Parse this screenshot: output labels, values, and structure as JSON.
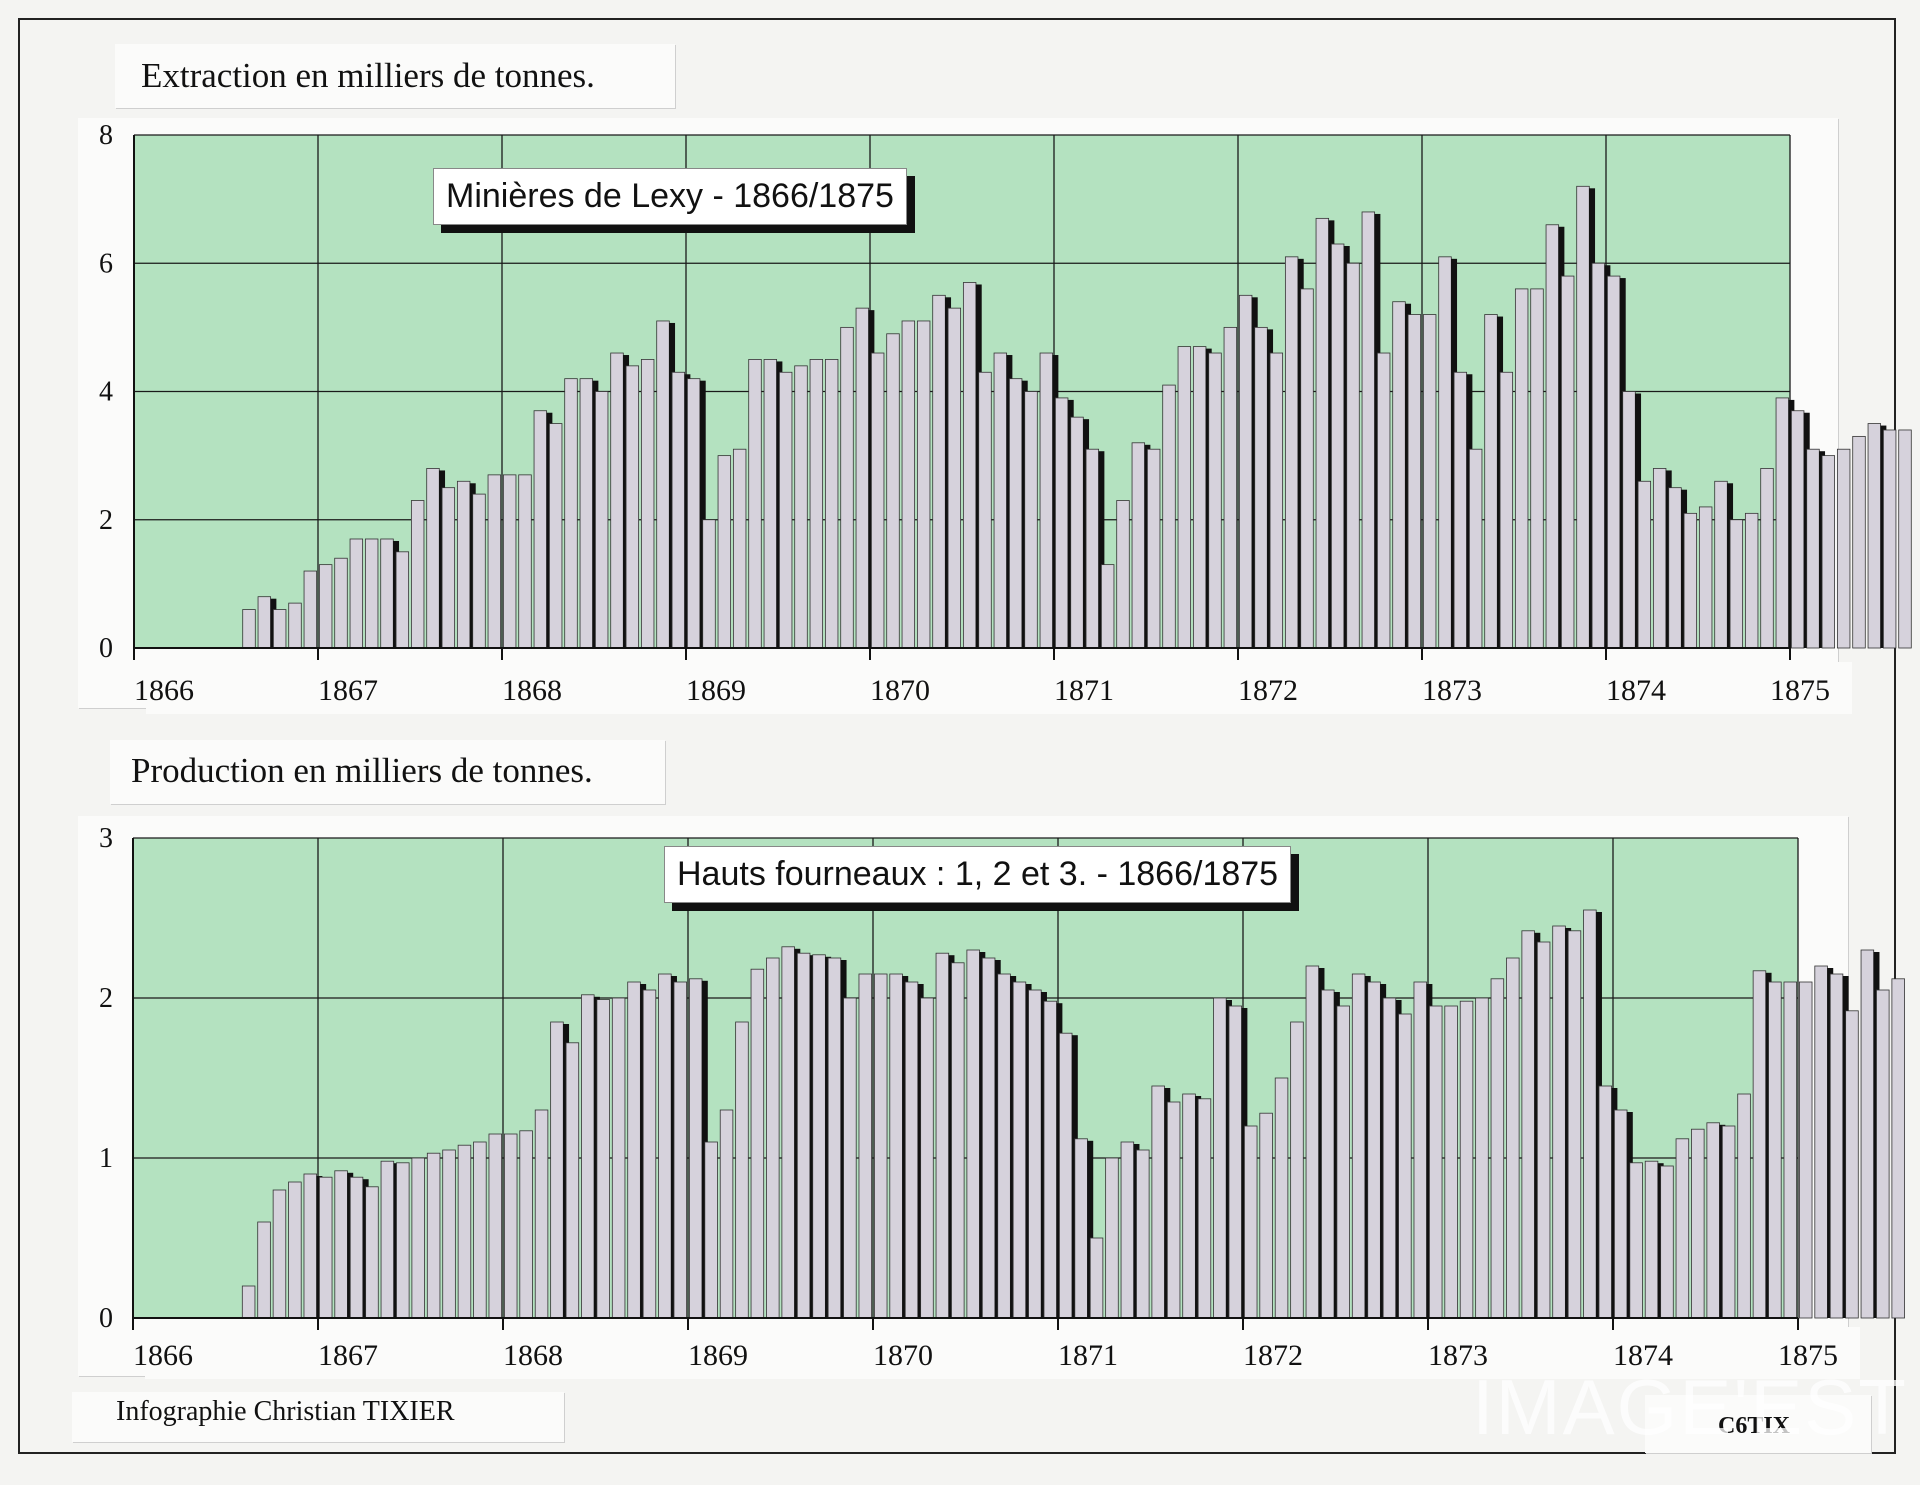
{
  "charts": [
    {
      "caption": "Extraction en milliers de tonnes.",
      "banner": "Minières de Lexy - 1866/1875"
    },
    {
      "caption": "Production en milliers de tonnes.",
      "banner": "Hauts fourneaux : 1, 2 et 3. -  1866/1875"
    }
  ],
  "credit_left": "Infographie Christian TIXIER",
  "credit_right": "C6TIX",
  "watermark": "IMAGE'EST",
  "colors": {
    "plot_bg": "#b4e2c0",
    "bar_fill": "#d6d2dc",
    "bar_shadow": "#111111",
    "grid": "#1a1a1a"
  },
  "chart_data": [
    {
      "type": "bar",
      "title": "Minières de Lexy - 1866/1875",
      "ylabel": "Extraction en milliers de tonnes.",
      "x_tick_labels": [
        "1866",
        "1867",
        "1868",
        "1869",
        "1870",
        "1871",
        "1872",
        "1873",
        "1874",
        "1875"
      ],
      "y_tick_labels": [
        "0",
        "2",
        "4",
        "6",
        "8"
      ],
      "xlim": [
        1866,
        1875
      ],
      "ylim": [
        0,
        8
      ],
      "grid": true,
      "frequency": "monthly",
      "values": [
        0.6,
        0.8,
        0.6,
        0.7,
        1.2,
        1.3,
        1.4,
        1.7,
        1.7,
        1.7,
        1.5,
        2.3,
        2.8,
        2.5,
        2.6,
        2.4,
        2.7,
        2.7,
        2.7,
        3.7,
        3.5,
        4.2,
        4.2,
        4.0,
        4.6,
        4.4,
        4.5,
        5.1,
        4.3,
        4.2,
        2.0,
        3.0,
        3.1,
        4.5,
        4.5,
        4.3,
        4.4,
        4.5,
        4.5,
        5.0,
        5.3,
        4.6,
        4.9,
        5.1,
        5.1,
        5.5,
        5.3,
        5.7,
        4.3,
        4.6,
        4.2,
        4.0,
        4.6,
        3.9,
        3.6,
        3.1,
        1.3,
        2.3,
        3.2,
        3.1,
        4.1,
        4.7,
        4.7,
        4.6,
        5.0,
        5.5,
        5.0,
        4.6,
        6.1,
        5.6,
        6.7,
        6.3,
        6.0,
        6.8,
        4.6,
        5.4,
        5.2,
        5.2,
        6.1,
        4.3,
        3.1,
        5.2,
        4.3,
        5.6,
        5.6,
        6.6,
        5.8,
        7.2,
        6.0,
        5.8,
        4.0,
        2.6,
        2.8,
        2.5,
        2.1,
        2.2,
        2.6,
        2.0,
        2.1,
        2.8,
        3.9,
        3.7,
        3.1,
        3.0,
        3.1,
        3.3,
        3.5,
        3.4,
        3.4
      ]
    },
    {
      "type": "bar",
      "title": "Hauts fourneaux : 1, 2 et 3. -  1866/1875",
      "ylabel": "Production en milliers de tonnes.",
      "x_tick_labels": [
        "1866",
        "1867",
        "1868",
        "1869",
        "1870",
        "1871",
        "1872",
        "1873",
        "1874",
        "1875"
      ],
      "y_tick_labels": [
        "0",
        "1",
        "2",
        "3"
      ],
      "xlim": [
        1866,
        1875
      ],
      "ylim": [
        0,
        3
      ],
      "grid": true,
      "frequency": "monthly",
      "values": [
        0.2,
        0.6,
        0.8,
        0.85,
        0.9,
        0.88,
        0.92,
        0.88,
        0.82,
        0.98,
        0.97,
        1.0,
        1.03,
        1.05,
        1.08,
        1.1,
        1.15,
        1.15,
        1.17,
        1.3,
        1.85,
        1.72,
        2.02,
        1.99,
        2.0,
        2.1,
        2.05,
        2.15,
        2.1,
        2.12,
        1.1,
        1.3,
        1.85,
        2.18,
        2.25,
        2.32,
        2.28,
        2.27,
        2.25,
        2.0,
        2.15,
        2.15,
        2.15,
        2.1,
        2.0,
        2.28,
        2.22,
        2.3,
        2.25,
        2.15,
        2.1,
        2.05,
        1.98,
        1.78,
        1.12,
        0.5,
        1.0,
        1.1,
        1.05,
        1.45,
        1.35,
        1.4,
        1.37,
        2.0,
        1.95,
        1.2,
        1.28,
        1.5,
        1.85,
        2.2,
        2.05,
        1.95,
        2.15,
        2.1,
        2.0,
        1.9,
        2.1,
        1.95,
        1.95,
        1.98,
        2.0,
        2.12,
        2.25,
        2.42,
        2.35,
        2.45,
        2.42,
        2.55,
        1.45,
        1.3,
        0.97,
        0.98,
        0.95,
        1.12,
        1.18,
        1.22,
        1.2,
        1.4,
        2.17,
        2.1,
        2.1,
        2.1,
        2.2,
        2.15,
        1.92,
        2.3,
        2.05,
        2.12
      ]
    }
  ]
}
